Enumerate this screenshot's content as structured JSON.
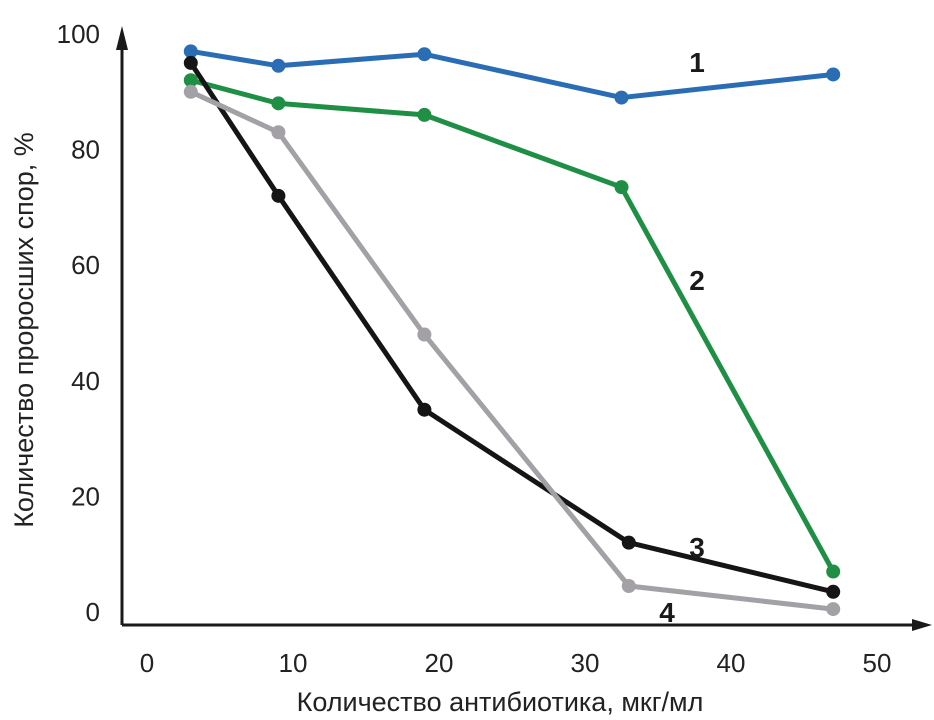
{
  "chart_data": {
    "type": "line",
    "title": "",
    "xlabel": "Количество антибиотика, мкг/мл",
    "ylabel": "Количество проросших спор, %",
    "xlim": [
      -2,
      55
    ],
    "ylim": [
      0,
      100
    ],
    "x_ticks": [
      0,
      10,
      20,
      30,
      40,
      50
    ],
    "y_ticks": [
      0,
      20,
      40,
      60,
      80,
      100
    ],
    "grid": false,
    "legend": "inline labels near line ends",
    "series": [
      {
        "name": "1",
        "color": "#2a6db5",
        "points": [
          [
            3,
            97
          ],
          [
            9,
            94.5
          ],
          [
            19,
            96.5
          ],
          [
            32.5,
            89
          ],
          [
            47,
            93
          ]
        ]
      },
      {
        "name": "2",
        "color": "#1f8f45",
        "points": [
          [
            3,
            92
          ],
          [
            9,
            88
          ],
          [
            19,
            86
          ],
          [
            32.5,
            73.5
          ],
          [
            47,
            7
          ]
        ]
      },
      {
        "name": "3",
        "color": "#151515",
        "points": [
          [
            3,
            95
          ],
          [
            9,
            72
          ],
          [
            19,
            35
          ],
          [
            33,
            12
          ],
          [
            47,
            3.5
          ]
        ]
      },
      {
        "name": "4",
        "color": "#a3a1a6",
        "points": [
          [
            3,
            90
          ],
          [
            9,
            83
          ],
          [
            19,
            48
          ],
          [
            33,
            4.5
          ],
          [
            47,
            0.5
          ]
        ]
      }
    ]
  }
}
